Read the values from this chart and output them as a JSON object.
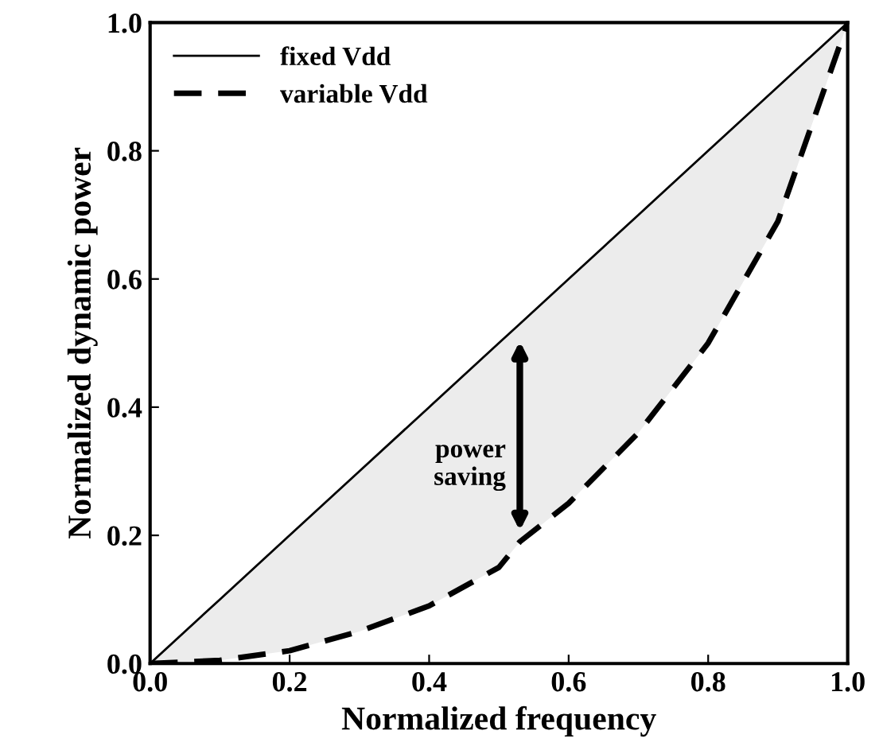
{
  "chart_data": {
    "type": "line",
    "xlabel": "Normalized frequency",
    "ylabel": "Normalized dynamic power",
    "x": [
      0.0,
      0.1,
      0.2,
      0.3,
      0.4,
      0.5,
      0.53,
      0.6,
      0.7,
      0.8,
      0.9,
      1.0
    ],
    "series": [
      {
        "name": "fixed Vdd",
        "color": "#000000",
        "line_style": "solid",
        "values": [
          0.0,
          0.1,
          0.2,
          0.3,
          0.4,
          0.5,
          0.53,
          0.6,
          0.7,
          0.8,
          0.9,
          1.0
        ],
        "lower": [
          0.0,
          0.005,
          0.02,
          0.05,
          0.09,
          0.15,
          0.19,
          0.25,
          0.36,
          0.5,
          0.69,
          1.0
        ],
        "upper": [
          0.0,
          0.1,
          0.2,
          0.3,
          0.4,
          0.5,
          0.53,
          0.6,
          0.7,
          0.8,
          0.9,
          1.0
        ]
      },
      {
        "name": "variable Vdd",
        "color": "#000000",
        "line_style": "dashed",
        "values": [
          0.0,
          0.005,
          0.02,
          0.05,
          0.09,
          0.15,
          0.19,
          0.25,
          0.36,
          0.5,
          0.69,
          1.0
        ]
      }
    ],
    "annotations": [
      "power saving"
    ],
    "xlim": [
      0.0,
      1.0
    ],
    "ylim": [
      0.0,
      1.0
    ],
    "xticks": [
      {
        "value": 0.0,
        "label": "0.0"
      },
      0.2,
      0.4,
      0.6,
      0.8,
      {
        "value": 1.0,
        "label": "1.0"
      }
    ],
    "yticks": [
      {
        "value": 0.0,
        "label": "0.0"
      },
      0.2,
      0.4,
      0.6,
      0.8,
      {
        "value": 1.0,
        "label": "1.0"
      }
    ],
    "legend": "top left",
    "grid": false
  }
}
